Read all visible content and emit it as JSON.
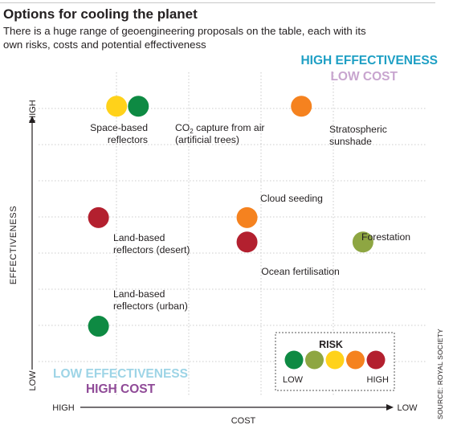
{
  "header": {
    "title": "Options for cooling the planet",
    "subtitle": "There is a huge range of geoengineering proposals on the table, each with its own risks, costs and potential effectiveness"
  },
  "source": "SOURCE: ROYAL SOCIETY",
  "risk_colors": {
    "very_low": "#0e8a43",
    "low": "#8ea642",
    "medium": "#ffd21a",
    "high": "#f5821f",
    "very_high": "#b3202f"
  },
  "chart_data": {
    "type": "scatter",
    "xlabel": "COST",
    "ylabel": "EFFECTIVENESS",
    "x_ticks": {
      "start": "HIGH",
      "end": "LOW"
    },
    "y_ticks": {
      "start": "LOW",
      "end": "HIGH"
    },
    "xlim": [
      0,
      10
    ],
    "ylim": [
      0,
      10
    ],
    "grid": true,
    "corner_labels": {
      "top_right": [
        "HIGH EFFECTIVENESS",
        "LOW COST"
      ],
      "bottom_left": [
        "LOW EFFECTIVENESS",
        "HIGH COST"
      ]
    },
    "legend": {
      "title": "RISK",
      "low_label": "LOW",
      "high_label": "HIGH",
      "placement": "bottom-right"
    },
    "points": [
      {
        "label": [
          "Space-based",
          "reflectors"
        ],
        "x": 2.0,
        "y": 9.4,
        "risk": "medium"
      },
      {
        "label": [
          "CO",
          "2",
          " capture from air",
          "(artificial trees)"
        ],
        "x": 2.6,
        "y": 9.4,
        "risk": "very_low"
      },
      {
        "label": [
          "Stratospheric",
          "sunshade"
        ],
        "x": 7.1,
        "y": 9.4,
        "risk": "high"
      },
      {
        "label": [
          "Cloud seeding"
        ],
        "x": 5.6,
        "y": 5.3,
        "risk": "high"
      },
      {
        "label": [
          "Land-based",
          "reflectors (desert)"
        ],
        "x": 1.5,
        "y": 5.3,
        "risk": "very_high"
      },
      {
        "label": [
          "Forestation"
        ],
        "x": 8.8,
        "y": 4.4,
        "risk": "low"
      },
      {
        "label": [
          "Ocean fertilisation"
        ],
        "x": 5.6,
        "y": 4.4,
        "risk": "very_high"
      },
      {
        "label": [
          "Land-based",
          "reflectors (urban)"
        ],
        "x": 1.5,
        "y": 1.3,
        "risk": "very_low"
      }
    ]
  }
}
